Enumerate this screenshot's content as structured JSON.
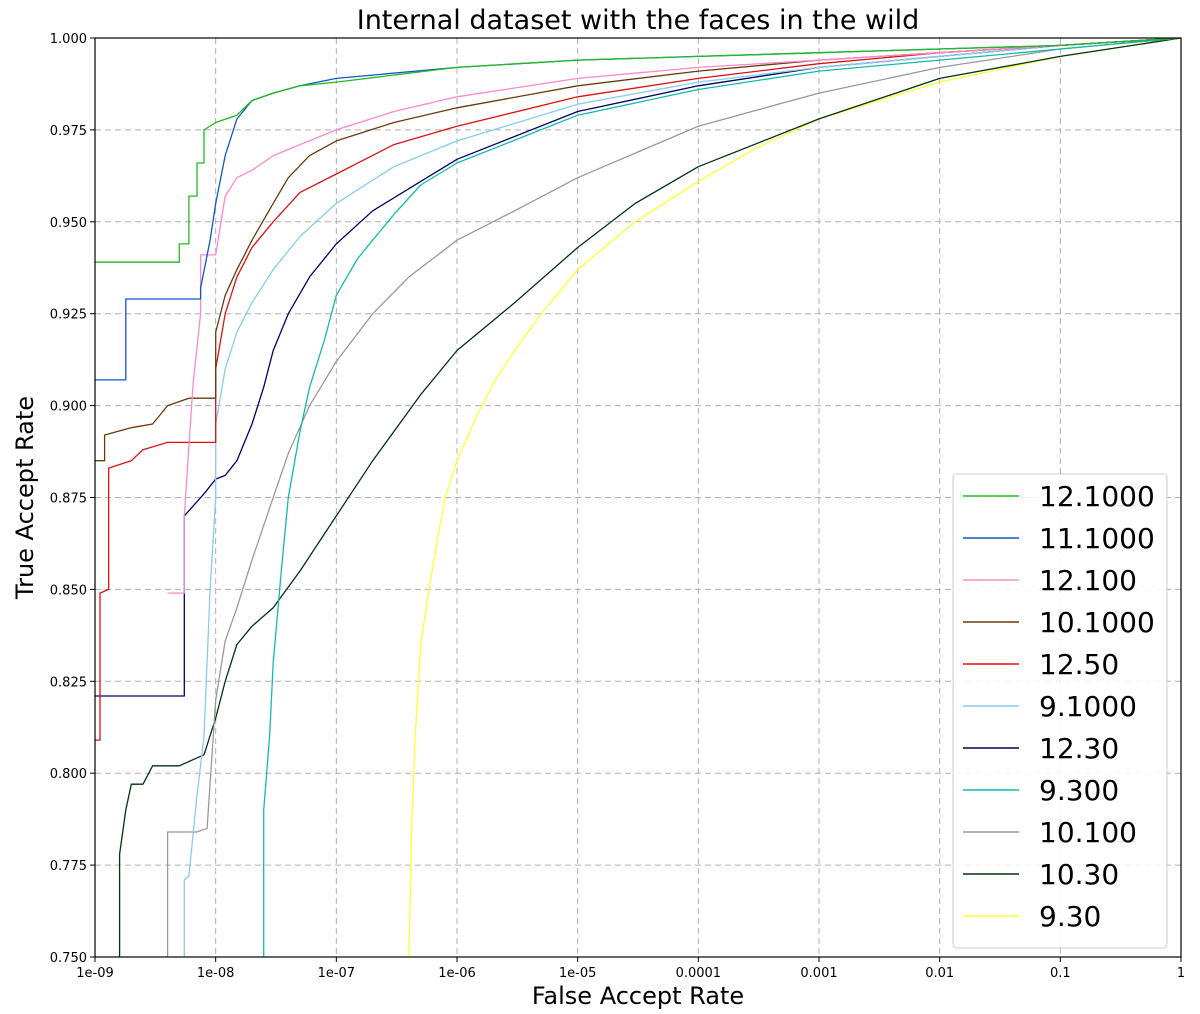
{
  "chart_data": {
    "type": "line",
    "title": "Internal dataset with the faces in the wild",
    "xlabel": "False Accept Rate",
    "ylabel": "True Accept Rate",
    "x_scale": "log",
    "xlim": [
      1e-09,
      1
    ],
    "ylim": [
      0.75,
      1.0
    ],
    "x_ticks": [
      1e-09,
      1e-08,
      1e-07,
      1e-06,
      1e-05,
      0.0001,
      0.001,
      0.01,
      0.1,
      1
    ],
    "x_tick_labels": [
      "1e-09",
      "1e-08",
      "1e-07",
      "1e-06",
      "1e-05",
      "0.0001",
      "0.001",
      "0.01",
      "0.1",
      "1"
    ],
    "y_ticks": [
      0.75,
      0.775,
      0.8,
      0.825,
      0.85,
      0.875,
      0.9,
      0.925,
      0.95,
      0.975,
      1.0
    ],
    "y_tick_labels": [
      "0.750",
      "0.775",
      "0.800",
      "0.825",
      "0.850",
      "0.875",
      "0.900",
      "0.925",
      "0.950",
      "0.975",
      "1.000"
    ],
    "grid": true,
    "legend_position": "lower-right",
    "series": [
      {
        "name": "12.1000",
        "color": "#22bb22",
        "x": [
          1e-09,
          5e-09,
          5e-09,
          6e-09,
          6e-09,
          7e-09,
          7e-09,
          8e-09,
          8e-09,
          1e-08,
          1.5e-08,
          2e-08,
          3e-08,
          5e-08,
          1e-07,
          1e-06,
          1e-05,
          0.0001,
          0.001,
          0.01,
          0.1,
          1
        ],
        "y": [
          0.939,
          0.939,
          0.944,
          0.944,
          0.957,
          0.957,
          0.966,
          0.966,
          0.975,
          0.977,
          0.979,
          0.983,
          0.985,
          0.987,
          0.988,
          0.992,
          0.994,
          0.995,
          0.996,
          0.997,
          0.998,
          1.0
        ]
      },
      {
        "name": "11.1000",
        "color": "#1155cc",
        "x": [
          1e-09,
          1.8e-09,
          1.8e-09,
          7.5e-09,
          7.5e-09,
          9e-09,
          1e-08,
          1.2e-08,
          1.5e-08,
          2e-08,
          3e-08,
          5e-08,
          1e-07,
          1e-06,
          1e-05,
          0.0001,
          0.001,
          0.01,
          0.1,
          1
        ],
        "y": [
          0.907,
          0.907,
          0.929,
          0.929,
          0.932,
          0.945,
          0.955,
          0.968,
          0.978,
          0.983,
          0.985,
          0.987,
          0.989,
          0.992,
          0.994,
          0.995,
          0.996,
          0.997,
          0.998,
          1.0
        ]
      },
      {
        "name": "12.100",
        "color": "#ff88cc",
        "x": [
          4e-09,
          5.5e-09,
          5.5e-09,
          6.5e-09,
          7.5e-09,
          7.5e-09,
          1e-08,
          1.2e-08,
          1.5e-08,
          2e-08,
          3e-08,
          5e-08,
          1e-07,
          3e-07,
          1e-06,
          1e-05,
          0.0001,
          0.001,
          0.01,
          0.1,
          1
        ],
        "y": [
          0.849,
          0.849,
          0.87,
          0.906,
          0.925,
          0.941,
          0.941,
          0.957,
          0.962,
          0.964,
          0.968,
          0.971,
          0.975,
          0.98,
          0.984,
          0.989,
          0.992,
          0.994,
          0.996,
          0.998,
          1.0
        ]
      },
      {
        "name": "10.1000",
        "color": "#6b3a0f",
        "x": [
          1e-09,
          1.2e-09,
          1.2e-09,
          2e-09,
          3e-09,
          4e-09,
          6e-09,
          1e-08,
          1e-08,
          1.2e-08,
          1.5e-08,
          2e-08,
          3e-08,
          4e-08,
          6e-08,
          1e-07,
          3e-07,
          1e-06,
          1e-05,
          0.0001,
          0.001,
          0.01,
          0.1,
          1
        ],
        "y": [
          0.885,
          0.885,
          0.892,
          0.894,
          0.895,
          0.9,
          0.902,
          0.902,
          0.92,
          0.93,
          0.937,
          0.945,
          0.955,
          0.962,
          0.968,
          0.972,
          0.977,
          0.981,
          0.987,
          0.991,
          0.994,
          0.996,
          0.998,
          1.0
        ]
      },
      {
        "name": "12.50",
        "color": "#dd1111",
        "x": [
          1e-09,
          1.1e-09,
          1.1e-09,
          1.3e-09,
          1.3e-09,
          2e-09,
          2.5e-09,
          4e-09,
          1e-08,
          1e-08,
          1.2e-08,
          1.5e-08,
          2e-08,
          3e-08,
          5e-08,
          1e-07,
          3e-07,
          1e-06,
          1e-05,
          0.0001,
          0.001,
          0.01,
          0.1,
          1
        ],
        "y": [
          0.809,
          0.809,
          0.849,
          0.85,
          0.883,
          0.885,
          0.888,
          0.89,
          0.89,
          0.91,
          0.925,
          0.935,
          0.943,
          0.95,
          0.958,
          0.963,
          0.971,
          0.976,
          0.984,
          0.989,
          0.993,
          0.996,
          0.998,
          1.0
        ]
      },
      {
        "name": "9.1000",
        "color": "#88ccee",
        "x": [
          5.5e-09,
          5.5e-09,
          6e-09,
          7e-09,
          8e-09,
          9e-09,
          1e-08,
          1e-08,
          1.2e-08,
          1.5e-08,
          2e-08,
          3e-08,
          5e-08,
          1e-07,
          3e-07,
          1e-06,
          1e-05,
          0.0001,
          0.001,
          0.01,
          0.1,
          1
        ],
        "y": [
          0.75,
          0.771,
          0.772,
          0.794,
          0.81,
          0.85,
          0.875,
          0.895,
          0.91,
          0.92,
          0.928,
          0.937,
          0.946,
          0.955,
          0.965,
          0.972,
          0.982,
          0.988,
          0.992,
          0.995,
          0.998,
          1.0
        ]
      },
      {
        "name": "12.30",
        "color": "#000066",
        "x": [
          1e-09,
          5.5e-09,
          5.5e-09,
          8e-09,
          1e-08,
          1.2e-08,
          1.5e-08,
          2e-08,
          2.5e-08,
          3e-08,
          4e-08,
          6e-08,
          1e-07,
          2e-07,
          5e-07,
          1e-06,
          1e-05,
          0.0001,
          0.001,
          0.01,
          0.1,
          1
        ],
        "y": [
          0.821,
          0.821,
          0.87,
          0.876,
          0.88,
          0.881,
          0.885,
          0.895,
          0.905,
          0.915,
          0.925,
          0.935,
          0.944,
          0.953,
          0.961,
          0.967,
          0.98,
          0.987,
          0.992,
          0.995,
          0.998,
          1.0
        ]
      },
      {
        "name": "9.300",
        "color": "#11bbaa",
        "x": [
          2.5e-08,
          2.5e-08,
          2.8e-08,
          3e-08,
          3.5e-08,
          4e-08,
          5e-08,
          6e-08,
          8e-08,
          1e-07,
          1.5e-07,
          2e-07,
          3e-07,
          5e-07,
          1e-06,
          1e-05,
          0.0001,
          0.001,
          0.01,
          0.1,
          1
        ],
        "y": [
          0.75,
          0.79,
          0.81,
          0.83,
          0.855,
          0.875,
          0.893,
          0.905,
          0.918,
          0.93,
          0.94,
          0.945,
          0.952,
          0.96,
          0.966,
          0.979,
          0.986,
          0.991,
          0.994,
          0.997,
          1.0
        ]
      },
      {
        "name": "10.100",
        "color": "#999999",
        "x": [
          4e-09,
          4e-09,
          7e-09,
          8.5e-09,
          1e-08,
          1.2e-08,
          1.5e-08,
          2e-08,
          3e-08,
          4e-08,
          6e-08,
          1e-07,
          2e-07,
          4e-07,
          1e-06,
          3e-06,
          1e-05,
          0.0001,
          0.001,
          0.01,
          0.1,
          1
        ],
        "y": [
          0.75,
          0.784,
          0.784,
          0.785,
          0.82,
          0.836,
          0.845,
          0.858,
          0.875,
          0.887,
          0.9,
          0.912,
          0.925,
          0.935,
          0.945,
          0.953,
          0.962,
          0.976,
          0.985,
          0.992,
          0.997,
          1.0
        ]
      },
      {
        "name": "10.30",
        "color": "#003311",
        "x": [
          1.6e-09,
          1.6e-09,
          1.8e-09,
          2e-09,
          2.5e-09,
          3e-09,
          5e-09,
          8e-09,
          1e-08,
          1.2e-08,
          1.5e-08,
          2e-08,
          3e-08,
          5e-08,
          1e-07,
          2e-07,
          5e-07,
          1e-06,
          3e-06,
          1e-05,
          3e-05,
          0.0001,
          0.001,
          0.01,
          0.1,
          1
        ],
        "y": [
          0.75,
          0.778,
          0.79,
          0.797,
          0.797,
          0.802,
          0.802,
          0.805,
          0.815,
          0.825,
          0.835,
          0.84,
          0.845,
          0.855,
          0.87,
          0.885,
          0.903,
          0.915,
          0.928,
          0.943,
          0.955,
          0.965,
          0.978,
          0.989,
          0.995,
          1.0
        ]
      },
      {
        "name": "9.30",
        "color": "#ffff33",
        "x": [
          4e-07,
          4.2e-07,
          4.5e-07,
          5e-07,
          6e-07,
          7e-07,
          8e-07,
          1e-06,
          1.5e-06,
          2e-06,
          3e-06,
          5e-06,
          1e-05,
          3e-05,
          0.0001,
          0.0003,
          0.001,
          0.01,
          0.1,
          1
        ],
        "y": [
          0.75,
          0.785,
          0.81,
          0.835,
          0.852,
          0.865,
          0.875,
          0.885,
          0.898,
          0.906,
          0.915,
          0.925,
          0.937,
          0.95,
          0.961,
          0.97,
          0.978,
          0.988,
          0.995,
          1.0
        ]
      }
    ]
  }
}
